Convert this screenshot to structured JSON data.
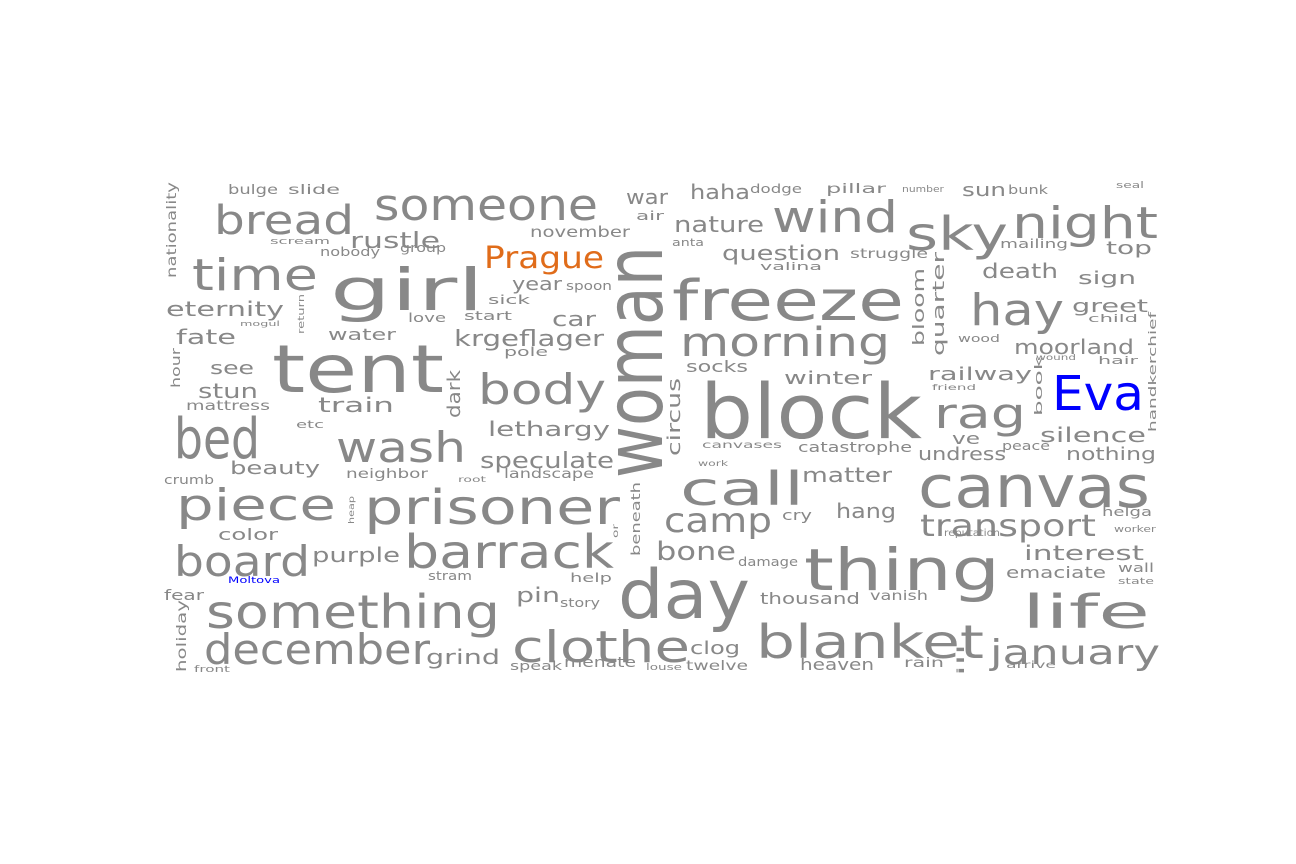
{
  "palette": {
    "default": "#888888",
    "blue": "#0000ff",
    "orange": "#e06c1a"
  },
  "words": [
    {
      "t": "woman",
      "c": "default"
    },
    {
      "t": "block",
      "c": "default"
    },
    {
      "t": "tent",
      "c": "default"
    },
    {
      "t": "day",
      "c": "default"
    },
    {
      "t": "canvas",
      "c": "default"
    },
    {
      "t": "freeze",
      "c": "default"
    },
    {
      "t": "thing",
      "c": "default"
    },
    {
      "t": "girl",
      "c": "default"
    },
    {
      "t": "Eva",
      "c": "blue"
    },
    {
      "t": "bed",
      "c": "default"
    },
    {
      "t": "blanket",
      "c": "default"
    },
    {
      "t": "prisoner",
      "c": "default"
    },
    {
      "t": "something",
      "c": "default"
    },
    {
      "t": "clothe",
      "c": "default"
    },
    {
      "t": "barrack",
      "c": "default"
    },
    {
      "t": "december",
      "c": "default"
    },
    {
      "t": "wind",
      "c": "default"
    },
    {
      "t": "sky",
      "c": "default"
    },
    {
      "t": "night",
      "c": "default"
    },
    {
      "t": "someone",
      "c": "default"
    },
    {
      "t": "call",
      "c": "default"
    },
    {
      "t": "life",
      "c": "default"
    },
    {
      "t": "piece",
      "c": "default"
    },
    {
      "t": "time",
      "c": "default"
    },
    {
      "t": "hay",
      "c": "default"
    },
    {
      "t": "rag",
      "c": "default"
    },
    {
      "t": "morning",
      "c": "default"
    },
    {
      "t": "wash",
      "c": "default"
    },
    {
      "t": "body",
      "c": "default"
    },
    {
      "t": "bread",
      "c": "default"
    },
    {
      "t": "board",
      "c": "default"
    },
    {
      "t": "january",
      "c": "default"
    },
    {
      "t": "Prague",
      "c": "orange"
    },
    {
      "t": "camp",
      "c": "default"
    },
    {
      "t": "transport",
      "c": "default"
    },
    {
      "t": "bone",
      "c": "default"
    },
    {
      "t": "krgeflager",
      "c": "default"
    },
    {
      "t": "speculate",
      "c": "default"
    },
    {
      "t": "lethargy",
      "c": "default"
    },
    {
      "t": "question",
      "c": "default"
    },
    {
      "t": "nature",
      "c": "default"
    },
    {
      "t": "rustle",
      "c": "default"
    },
    {
      "t": "eternity",
      "c": "default"
    },
    {
      "t": "purple",
      "c": "default"
    },
    {
      "t": "haha",
      "c": "default"
    },
    {
      "t": "war",
      "c": "default"
    },
    {
      "t": "november",
      "c": "default"
    },
    {
      "t": "death",
      "c": "default"
    },
    {
      "t": "moorland",
      "c": "default"
    },
    {
      "t": "silence",
      "c": "default"
    },
    {
      "t": "interest",
      "c": "default"
    },
    {
      "t": "emaciate",
      "c": "default"
    },
    {
      "t": "railway",
      "c": "default"
    },
    {
      "t": "winter",
      "c": "default"
    },
    {
      "t": "matter",
      "c": "default"
    },
    {
      "t": "undress",
      "c": "default"
    },
    {
      "t": "hang",
      "c": "default"
    },
    {
      "t": "circus",
      "c": "default"
    },
    {
      "t": "dark",
      "c": "default"
    },
    {
      "t": "train",
      "c": "default"
    },
    {
      "t": "beauty",
      "c": "default"
    },
    {
      "t": "fate",
      "c": "default"
    },
    {
      "t": "stun",
      "c": "default"
    },
    {
      "t": "see",
      "c": "default"
    },
    {
      "t": "water",
      "c": "default"
    },
    {
      "t": "car",
      "c": "default"
    },
    {
      "t": "year",
      "c": "default"
    },
    {
      "t": "pin",
      "c": "default"
    },
    {
      "t": "grind",
      "c": "default"
    },
    {
      "t": "thousand",
      "c": "default"
    },
    {
      "t": "clog",
      "c": "default"
    },
    {
      "t": "heaven",
      "c": "default"
    },
    {
      "t": "sun",
      "c": "default"
    },
    {
      "t": "top",
      "c": "default"
    },
    {
      "t": "sign",
      "c": "default"
    },
    {
      "t": "greet",
      "c": "default"
    },
    {
      "t": "nothing",
      "c": "default"
    },
    {
      "t": "bloom",
      "c": "default"
    },
    {
      "t": "quarter",
      "c": "default"
    },
    {
      "t": "socks",
      "c": "default"
    },
    {
      "t": "catastrophe",
      "c": "default"
    },
    {
      "t": "ve",
      "c": "default"
    },
    {
      "t": "color",
      "c": "default"
    },
    {
      "t": "crumb",
      "c": "default"
    },
    {
      "t": "fear",
      "c": "default"
    },
    {
      "t": "holiday",
      "c": "default"
    },
    {
      "t": "nationality",
      "c": "default"
    },
    {
      "t": "bulge",
      "c": "default"
    },
    {
      "t": "slide",
      "c": "default"
    },
    {
      "t": "mattress",
      "c": "default"
    },
    {
      "t": "hour",
      "c": "default"
    },
    {
      "t": "neighbor",
      "c": "default"
    },
    {
      "t": "landscape",
      "c": "default"
    },
    {
      "t": "beneath",
      "c": "default"
    },
    {
      "t": "cry",
      "c": "default"
    },
    {
      "t": "vanish",
      "c": "default"
    },
    {
      "t": "rain",
      "c": "default"
    },
    {
      "t": "twelve",
      "c": "default"
    },
    {
      "t": "menate",
      "c": "default"
    },
    {
      "t": "speak",
      "c": "default"
    },
    {
      "t": "story",
      "c": "default"
    },
    {
      "t": "help",
      "c": "default"
    },
    {
      "t": "stram",
      "c": "default"
    },
    {
      "t": "damage",
      "c": "default"
    },
    {
      "t": "struggle",
      "c": "default"
    },
    {
      "t": "valina",
      "c": "default"
    },
    {
      "t": "anta",
      "c": "default"
    },
    {
      "t": "pillar",
      "c": "default"
    },
    {
      "t": "dodge",
      "c": "default"
    },
    {
      "t": "air",
      "c": "default"
    },
    {
      "t": "love",
      "c": "default"
    },
    {
      "t": "start",
      "c": "default"
    },
    {
      "t": "sick",
      "c": "default"
    },
    {
      "t": "spoon",
      "c": "default"
    },
    {
      "t": "pole",
      "c": "default"
    },
    {
      "t": "group",
      "c": "default"
    },
    {
      "t": "nobody",
      "c": "default"
    },
    {
      "t": "scream",
      "c": "default"
    },
    {
      "t": "etc",
      "c": "default"
    },
    {
      "t": "wood",
      "c": "default"
    },
    {
      "t": "child",
      "c": "default"
    },
    {
      "t": "hair",
      "c": "default"
    },
    {
      "t": "handkerchief",
      "c": "default"
    },
    {
      "t": "book",
      "c": "default"
    },
    {
      "t": "peace",
      "c": "default"
    },
    {
      "t": "mailing",
      "c": "default"
    },
    {
      "t": "bunk",
      "c": "default"
    },
    {
      "t": "number",
      "c": "default"
    },
    {
      "t": "seal",
      "c": "default"
    },
    {
      "t": "helga",
      "c": "default"
    },
    {
      "t": "worker",
      "c": "default"
    },
    {
      "t": "wall",
      "c": "default"
    },
    {
      "t": "state",
      "c": "default"
    },
    {
      "t": "arrive",
      "c": "default"
    },
    {
      "t": "ill",
      "c": "default"
    },
    {
      "t": "reputation",
      "c": "default"
    },
    {
      "t": "canvases",
      "c": "default"
    },
    {
      "t": "work",
      "c": "default"
    },
    {
      "t": "root",
      "c": "default"
    },
    {
      "t": "heap",
      "c": "default"
    },
    {
      "t": "or",
      "c": "default"
    },
    {
      "t": "louse",
      "c": "default"
    },
    {
      "t": "front",
      "c": "default"
    },
    {
      "t": "return",
      "c": "default"
    },
    {
      "t": "mogul",
      "c": "default"
    },
    {
      "t": "friend",
      "c": "default"
    },
    {
      "t": "wound",
      "c": "default"
    },
    {
      "t": "Moltova",
      "c": "blue"
    }
  ]
}
